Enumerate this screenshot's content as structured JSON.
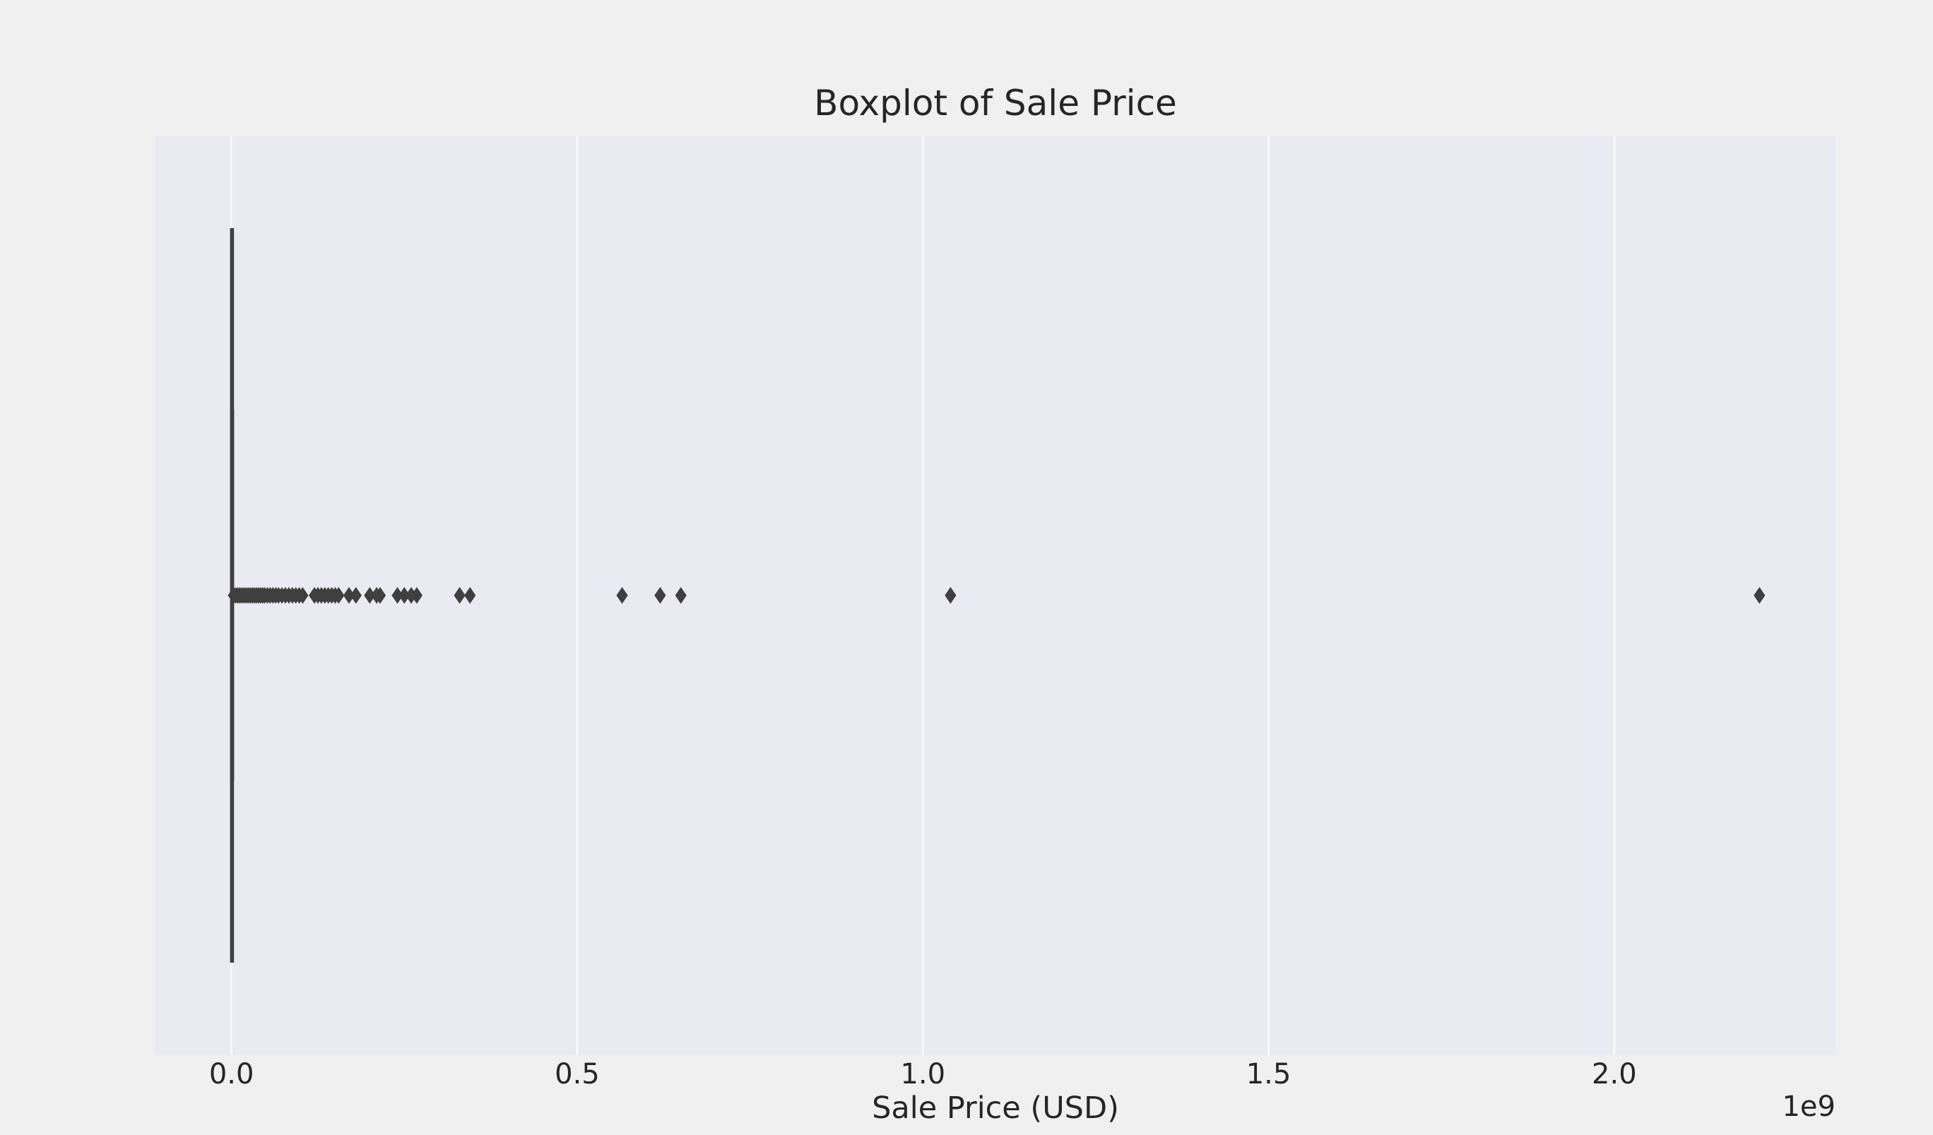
{
  "chart_data": {
    "type": "boxplot",
    "orientation": "horizontal",
    "title": "Boxplot of Sale Price",
    "xlabel": "Sale Price (USD)",
    "ylabel": "",
    "x_scale_label": "1e9",
    "xlim": [
      -0.11,
      2.32
    ],
    "xticks": [
      0.0,
      0.5,
      1.0,
      1.5,
      2.0
    ],
    "xtick_labels": [
      "0.0",
      "0.5",
      "1.0",
      "1.5",
      "2.0"
    ],
    "grid": "x",
    "box": {
      "q1": 0.00024,
      "median": 0.00055,
      "q3": 0.001,
      "whisker_low": 0.0,
      "whisker_high": 0.0021
    },
    "outliers": [
      0.003,
      0.006,
      0.009,
      0.012,
      0.015,
      0.018,
      0.021,
      0.024,
      0.027,
      0.03,
      0.033,
      0.036,
      0.039,
      0.042,
      0.045,
      0.048,
      0.052,
      0.056,
      0.06,
      0.064,
      0.068,
      0.073,
      0.078,
      0.083,
      0.088,
      0.093,
      0.098,
      0.103,
      0.12,
      0.125,
      0.13,
      0.135,
      0.14,
      0.145,
      0.15,
      0.155,
      0.17,
      0.18,
      0.2,
      0.21,
      0.215,
      0.24,
      0.25,
      0.26,
      0.268,
      0.33,
      0.345,
      0.565,
      0.62,
      0.65,
      1.04,
      2.21
    ],
    "colors": {
      "figure_bg": "#f0f0f0",
      "axes_bg": "#eaeaf2",
      "grid": "#ffffff",
      "box_line": "#3f3f3f",
      "outlier": "#3f3f3f",
      "text": "#262626"
    }
  }
}
